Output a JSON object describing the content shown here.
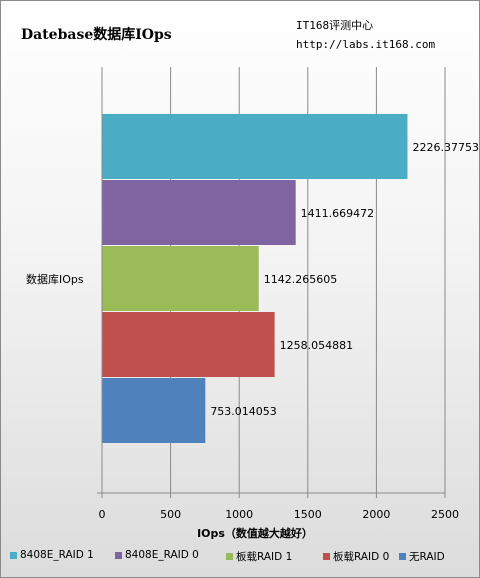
{
  "header": {
    "title": "Datebase数据库IOps",
    "brand_line1": "IT168评测中心",
    "brand_line2": "http://labs.it168.com"
  },
  "chart_data": {
    "type": "bar",
    "orientation": "horizontal",
    "categories": [
      "数据库IOps"
    ],
    "series": [
      {
        "name": "8408E_RAID 1",
        "values": [
          2226.37753
        ],
        "label": "2226.37753",
        "color": "#4BACC6"
      },
      {
        "name": "8408E_RAID 0",
        "values": [
          1411.669472
        ],
        "label": "1411.669472",
        "color": "#8064A2"
      },
      {
        "name": "板载RAID 1",
        "values": [
          1142.265605
        ],
        "label": "1142.265605",
        "color": "#9BBB59"
      },
      {
        "name": "板载RAID 0",
        "values": [
          1258.054881
        ],
        "label": "1258.054881",
        "color": "#C0504D"
      },
      {
        "name": "无RAID",
        "values": [
          753.014053
        ],
        "label": "753.014053",
        "color": "#4F81BD"
      }
    ],
    "xlabel": "IOps（数值越大越好）",
    "xlim": [
      0,
      2500
    ],
    "xticks": [
      0,
      500,
      1000,
      1500,
      2000,
      2500
    ],
    "grid": true,
    "legend_position": "bottom"
  }
}
